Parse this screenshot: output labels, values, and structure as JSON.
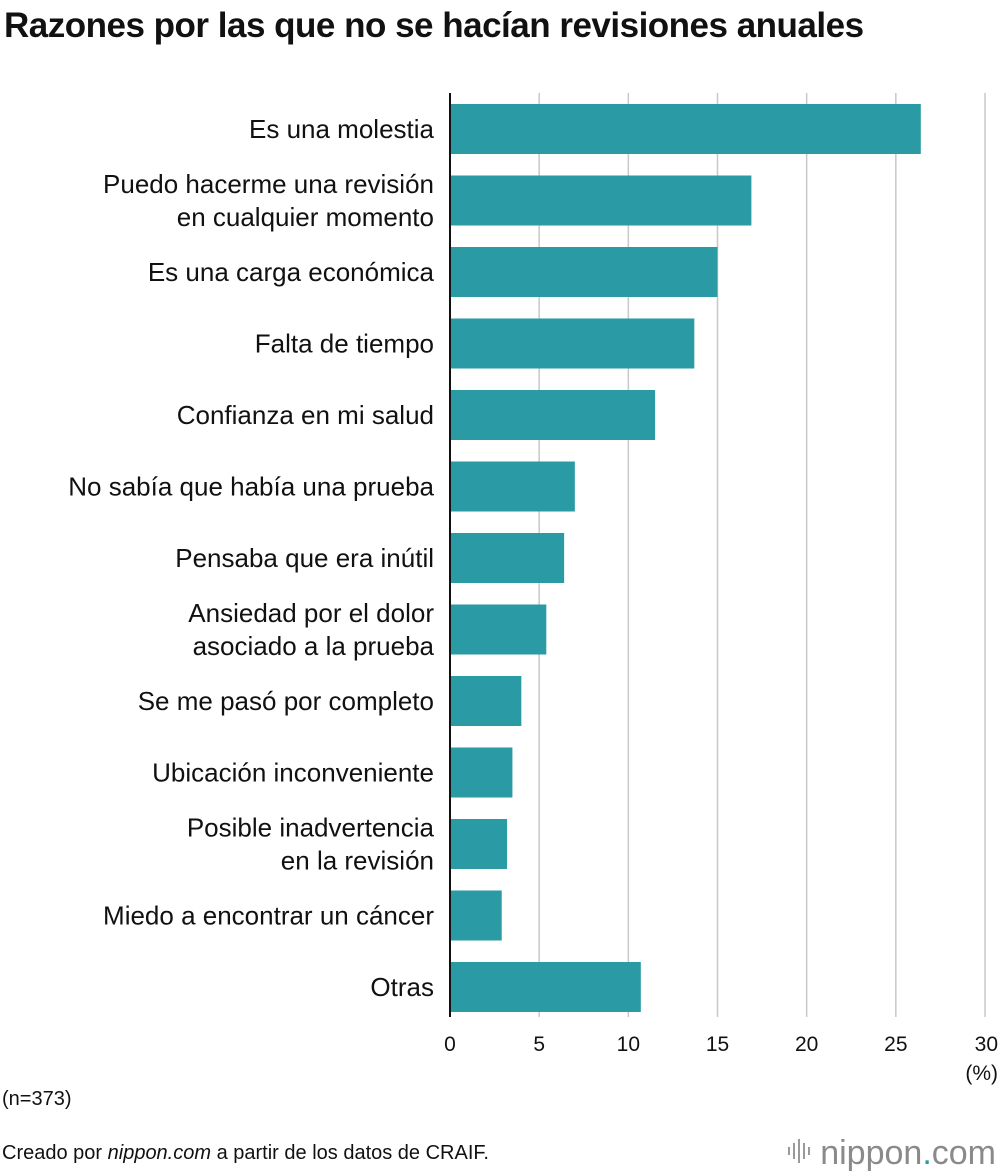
{
  "chart_data": {
    "type": "bar",
    "orientation": "horizontal",
    "title": "Razones por las que no se hacían revisiones anuales",
    "categories": [
      [
        "Es una molestia"
      ],
      [
        "Puedo hacerme una revisión",
        "en cualquier momento"
      ],
      [
        "Es una carga económica"
      ],
      [
        "Falta de tiempo"
      ],
      [
        "Confianza en mi salud"
      ],
      [
        "No sabía que había una prueba"
      ],
      [
        "Pensaba que era inútil"
      ],
      [
        "Ansiedad por el dolor",
        "asociado a la prueba"
      ],
      [
        "Se me pasó por completo"
      ],
      [
        "Ubicación inconveniente"
      ],
      [
        "Posible inadvertencia",
        "en la revisión"
      ],
      [
        "Miedo a encontrar un cáncer"
      ],
      [
        "Otras"
      ]
    ],
    "values": [
      26.4,
      16.9,
      15.0,
      13.7,
      11.5,
      7.0,
      6.4,
      5.4,
      4.0,
      3.5,
      3.2,
      2.9,
      10.7
    ],
    "xlim": [
      0,
      30
    ],
    "xticks": [
      0,
      5,
      10,
      15,
      20,
      25,
      30
    ],
    "xlabel": "(%)",
    "bar_color": "#2a9aa5",
    "grid_color": "#c8c8c8",
    "grid": true
  },
  "notes": {
    "sample": "(n=373)",
    "source_prefix": "Creado por ",
    "source_site": "nippon.com",
    "source_suffix": " a partir de los datos de CRAIF."
  },
  "logo": {
    "name": "nippon",
    "dot": ".",
    "tld": "com"
  }
}
